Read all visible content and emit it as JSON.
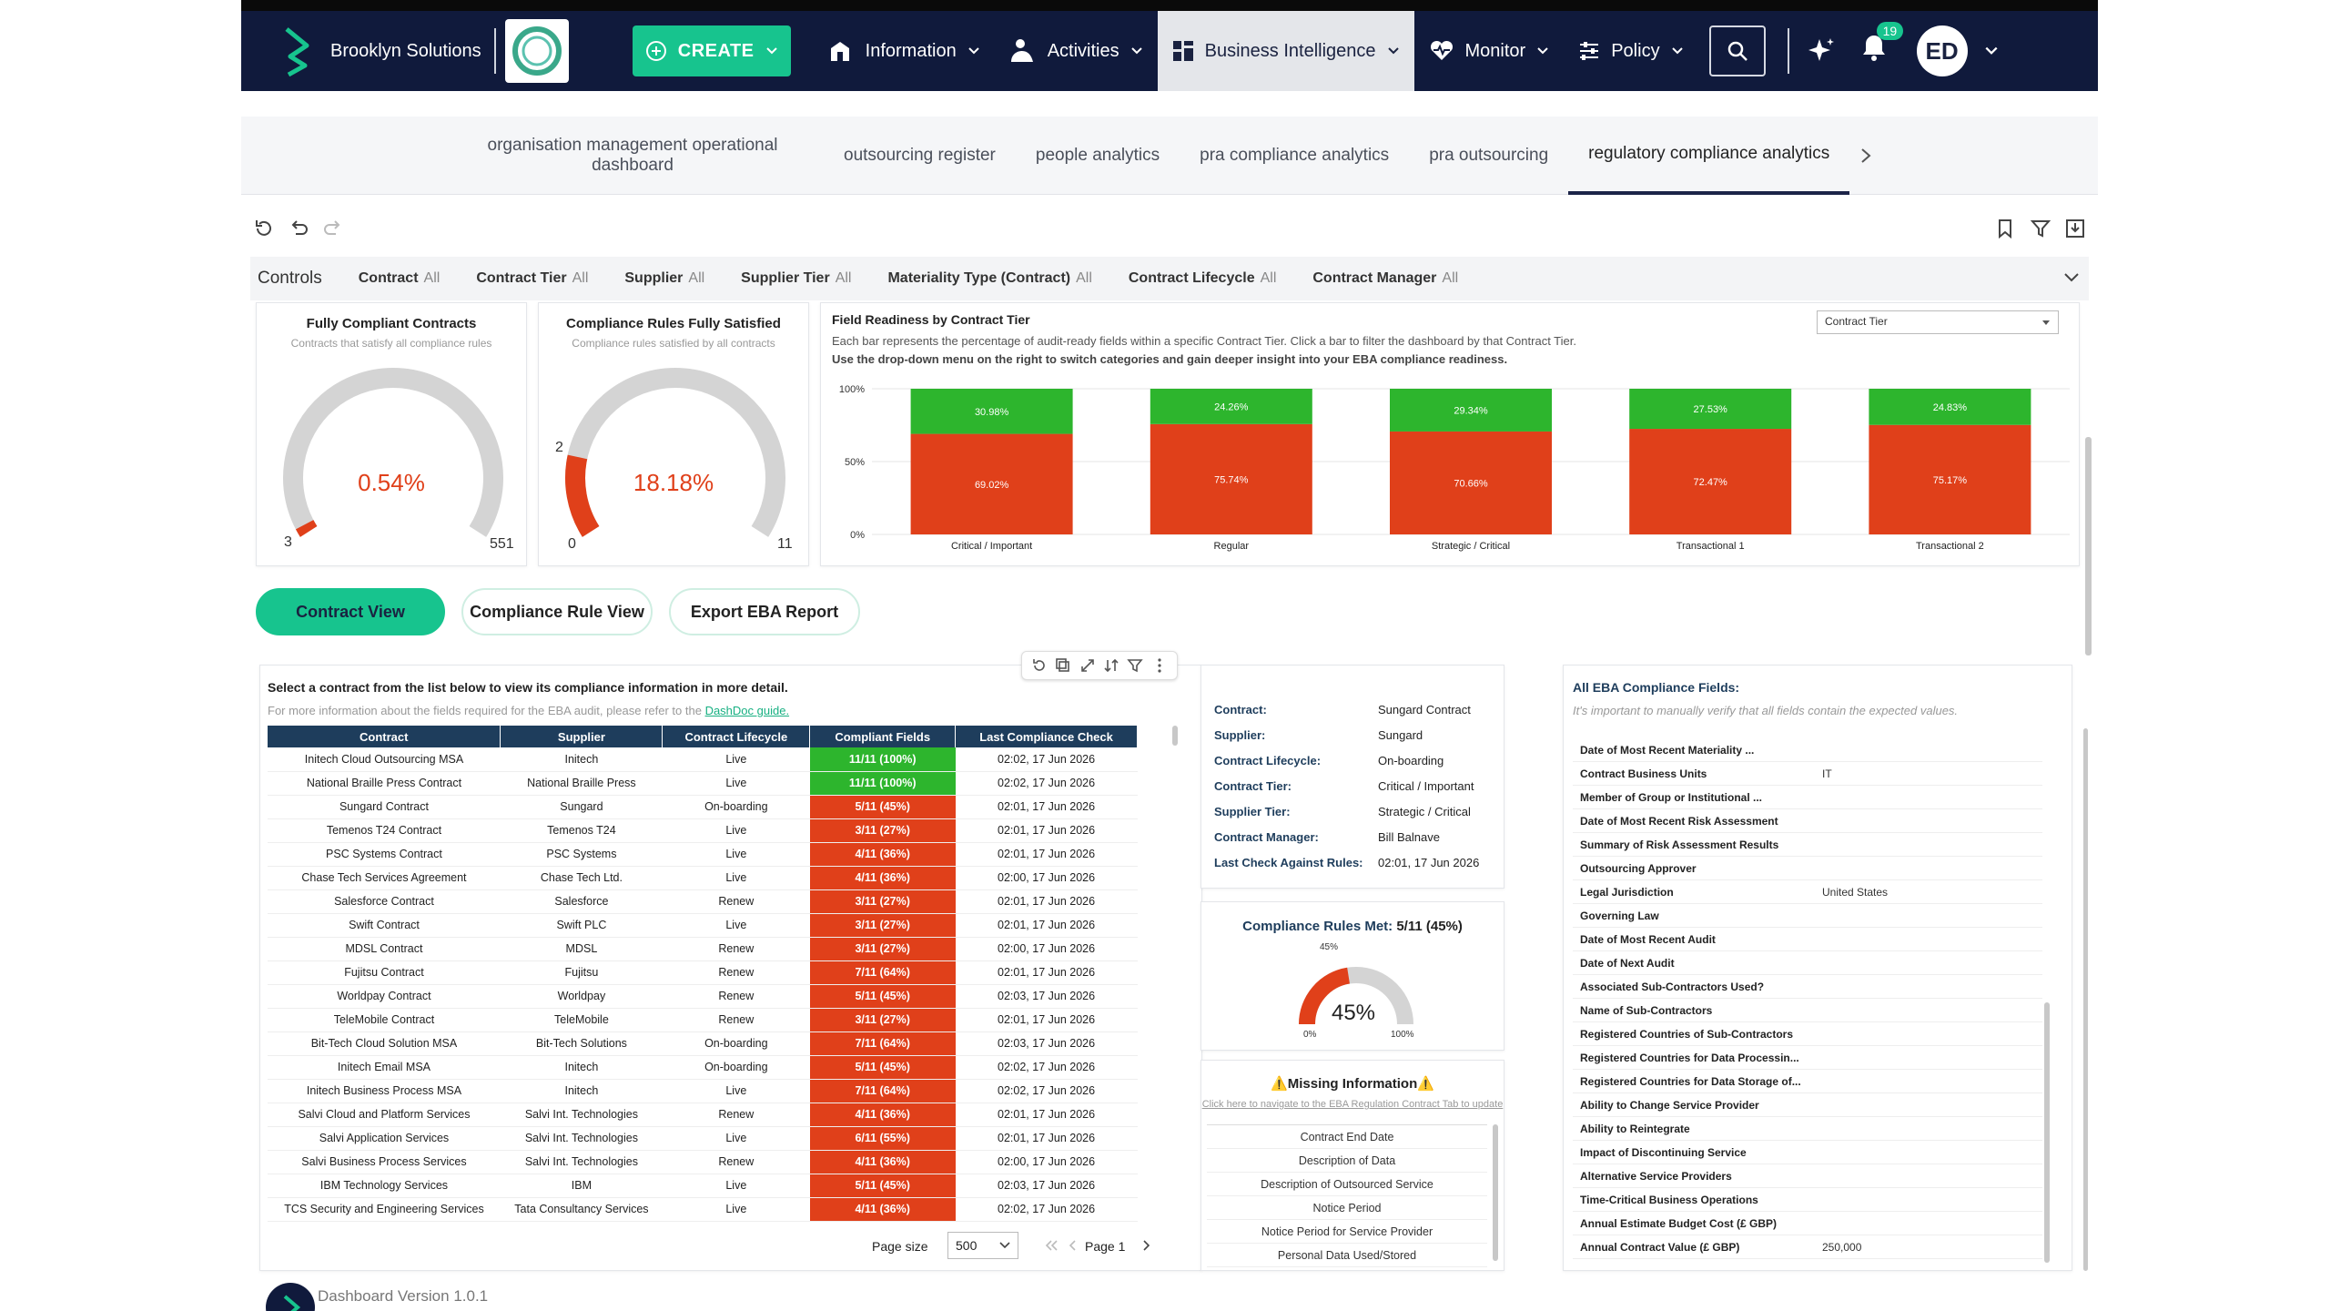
{
  "nav": {
    "brand": "Brooklyn Solutions",
    "create": "CREATE",
    "items": [
      "Information",
      "Activities",
      "Business Intelligence",
      "Monitor",
      "Policy"
    ],
    "notif_count": "19",
    "avatar": "ED"
  },
  "tabs": [
    "organisation management operational dashboard",
    "outsourcing register",
    "people analytics",
    "pra compliance analytics",
    "pra outsourcing",
    "regulatory compliance analytics"
  ],
  "controls": {
    "title": "Controls",
    "items": [
      {
        "label": "Contract",
        "value": "All"
      },
      {
        "label": "Contract Tier",
        "value": "All"
      },
      {
        "label": "Supplier",
        "value": "All"
      },
      {
        "label": "Supplier Tier",
        "value": "All"
      },
      {
        "label": "Materiality Type (Contract)",
        "value": "All"
      },
      {
        "label": "Contract Lifecycle",
        "value": "All"
      },
      {
        "label": "Contract Manager",
        "value": "All"
      }
    ]
  },
  "gauge1": {
    "title": "Fully Compliant Contracts",
    "sub": "Contracts that satisfy all compliance rules",
    "value": "0.54%",
    "min": "3",
    "max": "551",
    "fraction": 0.0054
  },
  "gauge2": {
    "title": "Compliance Rules Fully Satisfied",
    "sub": "Compliance rules satisfied by all contracts",
    "value": "18.18%",
    "min": "0",
    "max": "11",
    "marker": "2",
    "fraction": 0.1818
  },
  "readiness": {
    "title": "Field Readiness by Contract Tier",
    "desc1": "Each bar represents the percentage of audit-ready fields within a specific Contract Tier. Click a bar to filter the dashboard by that Contract Tier.",
    "desc2": "Use the drop-down menu on the right to switch categories and gain deeper insight into your EBA compliance readiness.",
    "dropdown": "Contract Tier"
  },
  "chart_data": {
    "type": "bar",
    "stacked": true,
    "categories": [
      "Critical / Important",
      "Regular",
      "Strategic / Critical",
      "Transactional 1",
      "Transactional 2"
    ],
    "series": [
      {
        "values": [
          69.02,
          75.74,
          70.66,
          72.47,
          75.17
        ],
        "labels": [
          "69.02%",
          "75.74%",
          "70.66%",
          "72.47%",
          "75.17%"
        ],
        "color": "#e0401a"
      },
      {
        "values": [
          30.98,
          24.26,
          29.34,
          27.53,
          24.83
        ],
        "labels": [
          "30.98%",
          "24.26%",
          "29.34%",
          "27.53%",
          "24.83%"
        ],
        "color": "#2db52d"
      }
    ],
    "yticks": [
      "100%",
      "50%",
      "0%"
    ],
    "ylim": [
      0,
      100
    ]
  },
  "view_buttons": {
    "contract": "Contract View",
    "rule": "Compliance Rule View",
    "export": "Export EBA Report"
  },
  "list": {
    "intro": "Select a contract from the list below to view its compliance information in more detail.",
    "hint": "For more information about the fields required for the EBA audit, please refer to the",
    "link": "DashDoc guide.",
    "headers": [
      "Contract",
      "Supplier",
      "Contract Lifecycle",
      "Compliant Fields",
      "Last Compliance Check"
    ],
    "rows": [
      [
        "Initech Cloud Outsourcing MSA",
        "Initech",
        "Live",
        "11/11 (100%)",
        "02:02, 17 Jun 2026"
      ],
      [
        "National Braille Press Contract",
        "National Braille Press",
        "Live",
        "11/11 (100%)",
        "02:02, 17 Jun 2026"
      ],
      [
        "Sungard Contract",
        "Sungard",
        "On-boarding",
        "5/11 (45%)",
        "02:01, 17 Jun 2026"
      ],
      [
        "Temenos T24 Contract",
        "Temenos T24",
        "Live",
        "3/11 (27%)",
        "02:01, 17 Jun 2026"
      ],
      [
        "PSC Systems Contract",
        "PSC Systems",
        "Live",
        "4/11 (36%)",
        "02:01, 17 Jun 2026"
      ],
      [
        "Chase Tech Services Agreement",
        "Chase Tech Ltd.",
        "Live",
        "4/11 (36%)",
        "02:00, 17 Jun 2026"
      ],
      [
        "Salesforce Contract",
        "Salesforce",
        "Renew",
        "3/11 (27%)",
        "02:01, 17 Jun 2026"
      ],
      [
        "Swift Contract",
        "Swift PLC",
        "Live",
        "3/11 (27%)",
        "02:01, 17 Jun 2026"
      ],
      [
        "MDSL Contract",
        "MDSL",
        "Renew",
        "3/11 (27%)",
        "02:00, 17 Jun 2026"
      ],
      [
        "Fujitsu Contract",
        "Fujitsu",
        "Renew",
        "7/11 (64%)",
        "02:01, 17 Jun 2026"
      ],
      [
        "Worldpay Contract",
        "Worldpay",
        "Renew",
        "5/11 (45%)",
        "02:03, 17 Jun 2026"
      ],
      [
        "TeleMobile Contract",
        "TeleMobile",
        "Renew",
        "3/11 (27%)",
        "02:01, 17 Jun 2026"
      ],
      [
        "Bit-Tech Cloud Solution MSA",
        "Bit-Tech Solutions",
        "On-boarding",
        "7/11 (64%)",
        "02:03, 17 Jun 2026"
      ],
      [
        "Initech Email MSA",
        "Initech",
        "On-boarding",
        "5/11 (45%)",
        "02:02, 17 Jun 2026"
      ],
      [
        "Initech Business Process MSA",
        "Initech",
        "Live",
        "7/11 (64%)",
        "02:02, 17 Jun 2026"
      ],
      [
        "Salvi Cloud and Platform Services",
        "Salvi Int. Technologies",
        "Renew",
        "4/11 (36%)",
        "02:01, 17 Jun 2026"
      ],
      [
        "Salvi Application Services",
        "Salvi Int. Technologies",
        "Live",
        "6/11 (55%)",
        "02:01, 17 Jun 2026"
      ],
      [
        "Salvi Business Process Services",
        "Salvi Int. Technologies",
        "Renew",
        "4/11 (36%)",
        "02:00, 17 Jun 2026"
      ],
      [
        "IBM Technology Services",
        "IBM",
        "Live",
        "5/11 (45%)",
        "02:03, 17 Jun 2026"
      ],
      [
        "TCS Security and Engineering Services",
        "Tata Consultancy Services",
        "Live",
        "4/11 (36%)",
        "02:02, 17 Jun 2026"
      ]
    ],
    "page_size_label": "Page size",
    "page_size": "500",
    "page": "Page 1"
  },
  "details": {
    "rows": [
      {
        "k": "Contract:",
        "v": "Sungard Contract"
      },
      {
        "k": "Supplier:",
        "v": "Sungard"
      },
      {
        "k": "Contract Lifecycle:",
        "v": "On-boarding"
      },
      {
        "k": "Contract Tier:",
        "v": "Critical / Important"
      },
      {
        "k": "Supplier Tier:",
        "v": "Strategic / Critical"
      },
      {
        "k": "Contract Manager:",
        "v": "Bill Balnave"
      },
      {
        "k": "Last Check Against Rules:",
        "v": "02:01, 17 Jun 2026"
      }
    ]
  },
  "rules_met": {
    "title": "Compliance Rules Met:",
    "value": "5/11 (45%)",
    "pct": "45%",
    "marker": "45%",
    "min": "0%",
    "max": "100%",
    "fraction": 0.45
  },
  "missing": {
    "title": "⚠️Missing Information⚠️",
    "link": "Click here to navigate to the EBA Regulation Contract Tab to update",
    "rows": [
      "Contract End Date",
      "Description of Data",
      "Description of Outsourced Service",
      "Notice Period",
      "Notice Period for Service Provider",
      "Personal Data Used/Stored"
    ]
  },
  "eba": {
    "title": "All EBA Compliance Fields:",
    "sub": "It's important to manually verify that all fields contain the expected values.",
    "rows": [
      {
        "k": "Date of Most Recent Materiality ...",
        "v": ""
      },
      {
        "k": "Contract Business Units",
        "v": "IT"
      },
      {
        "k": "Member of Group or Institutional ...",
        "v": ""
      },
      {
        "k": "Date of Most Recent Risk Assessment",
        "v": ""
      },
      {
        "k": "Summary of Risk Assessment Results",
        "v": ""
      },
      {
        "k": "Outsourcing Approver",
        "v": ""
      },
      {
        "k": "Legal Jurisdiction",
        "v": "United States"
      },
      {
        "k": "Governing Law",
        "v": ""
      },
      {
        "k": "Date of Most Recent Audit",
        "v": ""
      },
      {
        "k": "Date of Next Audit",
        "v": ""
      },
      {
        "k": "Associated Sub-Contractors Used?",
        "v": ""
      },
      {
        "k": "Name of Sub-Contractors",
        "v": ""
      },
      {
        "k": "Registered Countries of Sub-Contractors",
        "v": ""
      },
      {
        "k": "Registered Countries for Data Processin...",
        "v": ""
      },
      {
        "k": "Registered Countries for Data Storage of...",
        "v": ""
      },
      {
        "k": "Ability to Change Service Provider",
        "v": ""
      },
      {
        "k": "Ability to Reintegrate",
        "v": ""
      },
      {
        "k": "Impact of Discontinuing Service",
        "v": ""
      },
      {
        "k": "Alternative Service Providers",
        "v": ""
      },
      {
        "k": "Time-Critical Business Operations",
        "v": ""
      },
      {
        "k": "Annual Estimate Budget Cost (£ GBP)",
        "v": ""
      },
      {
        "k": "Annual Contract Value (£ GBP)",
        "v": "250,000"
      }
    ]
  },
  "footer": {
    "version": "Dashboard Version 1.0.1"
  },
  "colors": {
    "navy": "#101a3c",
    "accent": "#17c48e",
    "red": "#e0401a",
    "green": "#2db52d"
  }
}
